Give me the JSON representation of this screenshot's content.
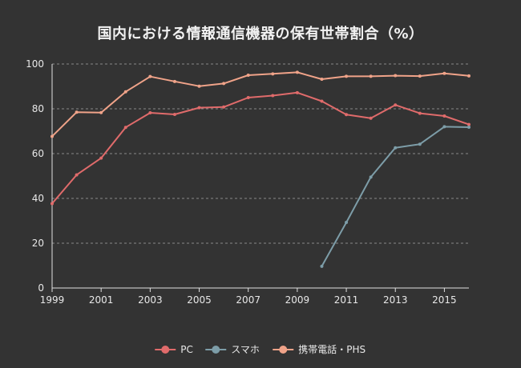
{
  "chart_data": {
    "type": "line",
    "title": "国内における情報通信機器の保有世帯割合（%）",
    "x": [
      1999,
      2000,
      2001,
      2002,
      2003,
      2004,
      2005,
      2006,
      2007,
      2008,
      2009,
      2010,
      2011,
      2012,
      2013,
      2014,
      2015,
      2016
    ],
    "x_ticks": [
      1999,
      2001,
      2003,
      2005,
      2007,
      2009,
      2011,
      2013,
      2015
    ],
    "xlim": [
      1999,
      2016
    ],
    "ylim": [
      0,
      100
    ],
    "y_ticks": [
      0,
      20,
      40,
      60,
      80,
      100
    ],
    "grid": true,
    "legend_position": "bottom",
    "series": [
      {
        "name": "PC",
        "color": "#e06b6b",
        "values": [
          37.7,
          50.5,
          58.0,
          71.7,
          78.2,
          77.5,
          80.5,
          80.8,
          85.0,
          85.9,
          87.2,
          83.4,
          77.4,
          75.8,
          81.7,
          78.0,
          76.8,
          73.0
        ]
      },
      {
        "name": "スマホ",
        "color": "#7d9da8",
        "values": [
          null,
          null,
          null,
          null,
          null,
          null,
          null,
          null,
          null,
          null,
          null,
          9.7,
          29.3,
          49.5,
          62.6,
          64.2,
          72.0,
          71.8
        ]
      },
      {
        "name": "携帯電話・PHS",
        "color": "#f0a389",
        "values": [
          67.7,
          78.5,
          78.3,
          87.6,
          94.4,
          92.2,
          90.1,
          91.3,
          95.0,
          95.6,
          96.3,
          93.2,
          94.5,
          94.5,
          94.8,
          94.6,
          95.8,
          94.7
        ]
      }
    ]
  }
}
